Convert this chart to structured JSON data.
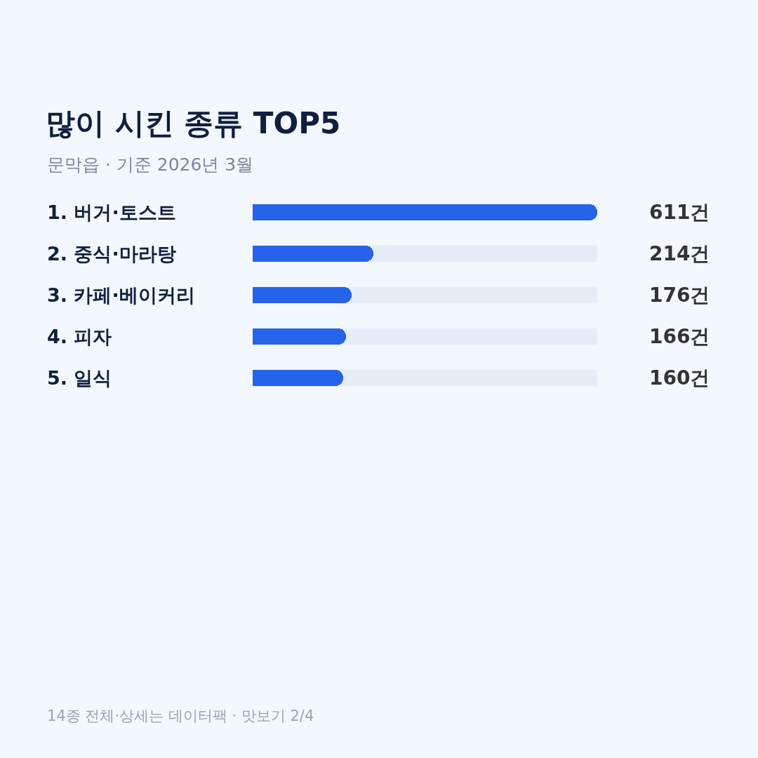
{
  "chart_data": {
    "type": "bar",
    "orientation": "horizontal",
    "title": "많이 시킨 종류 TOP5",
    "subtitle": "문막읍 · 기준 2026년 3월",
    "categories": [
      "1. 버거·토스트",
      "2. 중식·마라탕",
      "3. 카페·베이커리",
      "4. 피자",
      "5. 일식"
    ],
    "values": [
      611,
      214,
      176,
      166,
      160
    ],
    "value_labels": [
      "611건",
      "214건",
      "176건",
      "166건",
      "160건"
    ],
    "color": "#2563eb",
    "annotations": [
      "14종 전체·상세는 데이터팩 · 맛보기 2/4"
    ]
  }
}
